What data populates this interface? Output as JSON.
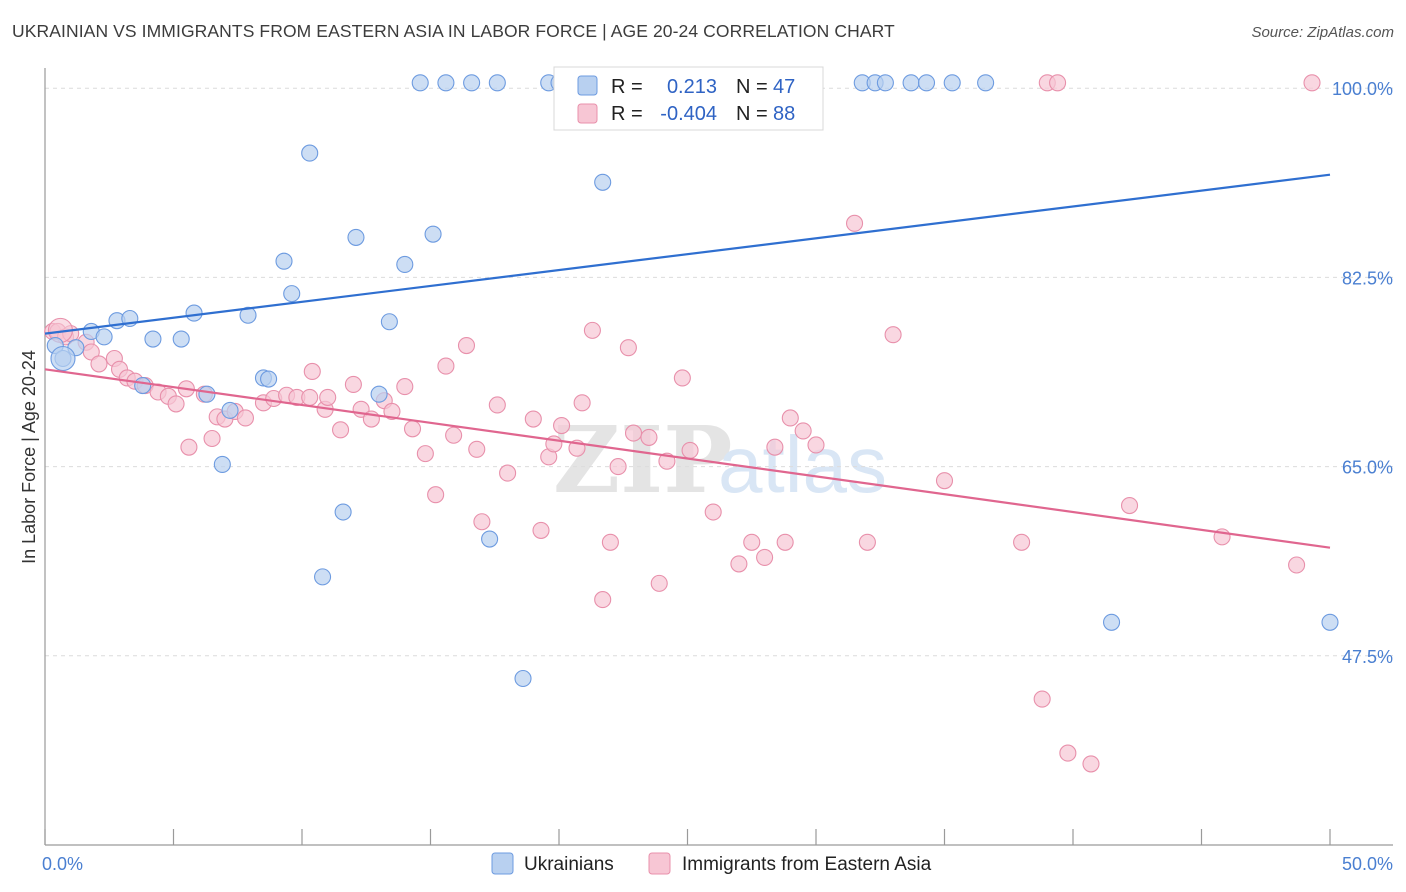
{
  "title": "UKRAINIAN VS IMMIGRANTS FROM EASTERN ASIA IN LABOR FORCE | AGE 20-24 CORRELATION CHART",
  "source": "Source: ZipAtlas.com",
  "watermark": {
    "zip": "ZIP",
    "atlas": "atlas"
  },
  "colors": {
    "blue_fill": "#b8d0f0",
    "blue_stroke": "#6d9be0",
    "blue_line": "#2f6fd0",
    "pink_fill": "#f7c6d4",
    "pink_stroke": "#e890ab",
    "pink_line": "#e0668f",
    "grid": "#dcdcdc",
    "tick_text": "#4a7fd1"
  },
  "legend": {
    "r_label": "R =",
    "n_label": "N =",
    "rows": [
      {
        "r": "0.213",
        "n": "47"
      },
      {
        "r": "-0.404",
        "n": "88"
      }
    ]
  },
  "chart_data": {
    "type": "scatter",
    "title": "UKRAINIAN VS IMMIGRANTS FROM EASTERN ASIA IN LABOR FORCE | AGE 20-24 CORRELATION CHART",
    "xlabel": "",
    "ylabel": "In Labor Force | Age 20-24",
    "xlim": [
      0,
      50
    ],
    "ylim": [
      30,
      101.5
    ],
    "x_tick_labels": [
      "0.0%",
      "50.0%"
    ],
    "y_ticks": [
      47.5,
      65.0,
      82.5,
      100.0
    ],
    "y_tick_labels": [
      "47.5%",
      "65.0%",
      "82.5%",
      "100.0%"
    ],
    "grid": true,
    "series": [
      {
        "name": "Ukrainians",
        "r": 0.213,
        "n": 47,
        "trend": {
          "x": [
            0,
            50
          ],
          "y": [
            77.3,
            92.0
          ]
        },
        "points": [
          [
            0.4,
            76.2
          ],
          [
            0.7,
            75.0
          ],
          [
            1.2,
            76.0
          ],
          [
            1.8,
            77.5
          ],
          [
            2.3,
            77.0
          ],
          [
            2.8,
            78.5
          ],
          [
            3.3,
            78.7
          ],
          [
            3.8,
            72.5
          ],
          [
            4.2,
            76.8
          ],
          [
            5.3,
            76.8
          ],
          [
            5.8,
            79.2
          ],
          [
            6.3,
            71.7
          ],
          [
            6.9,
            65.2
          ],
          [
            7.2,
            70.2
          ],
          [
            7.9,
            79.0
          ],
          [
            8.5,
            73.2
          ],
          [
            8.7,
            73.1
          ],
          [
            9.3,
            84.0
          ],
          [
            9.6,
            81.0
          ],
          [
            10.3,
            94.0
          ],
          [
            10.8,
            54.8
          ],
          [
            11.6,
            60.8
          ],
          [
            12.1,
            86.2
          ],
          [
            13.0,
            71.7
          ],
          [
            13.4,
            78.4
          ],
          [
            14.0,
            83.7
          ],
          [
            14.6,
            100.5
          ],
          [
            15.1,
            86.5
          ],
          [
            15.6,
            100.5
          ],
          [
            16.6,
            100.5
          ],
          [
            17.3,
            58.3
          ],
          [
            17.6,
            100.5
          ],
          [
            18.6,
            45.4
          ],
          [
            19.6,
            100.5
          ],
          [
            20.0,
            100.5
          ],
          [
            21.7,
            91.3
          ],
          [
            23.3,
            100.5
          ],
          [
            25.3,
            100.5
          ],
          [
            31.8,
            100.5
          ],
          [
            32.3,
            100.5
          ],
          [
            32.7,
            100.5
          ],
          [
            33.7,
            100.5
          ],
          [
            34.3,
            100.5
          ],
          [
            35.3,
            100.5
          ],
          [
            36.6,
            100.5
          ],
          [
            41.5,
            50.6
          ],
          [
            50.0,
            50.6
          ]
        ]
      },
      {
        "name": "Immigrants from Eastern Asia",
        "r": -0.404,
        "n": 88,
        "trend": {
          "x": [
            0,
            50
          ],
          "y": [
            74.0,
            57.5
          ]
        },
        "points": [
          [
            0.3,
            77.5
          ],
          [
            0.5,
            77.5
          ],
          [
            0.8,
            77.0
          ],
          [
            1.0,
            77.3
          ],
          [
            1.6,
            76.5
          ],
          [
            1.8,
            75.6
          ],
          [
            2.1,
            74.5
          ],
          [
            2.7,
            75.0
          ],
          [
            2.9,
            74.0
          ],
          [
            3.2,
            73.2
          ],
          [
            3.5,
            72.9
          ],
          [
            3.9,
            72.5
          ],
          [
            4.4,
            71.9
          ],
          [
            4.8,
            71.5
          ],
          [
            5.1,
            70.8
          ],
          [
            5.5,
            72.2
          ],
          [
            5.6,
            66.8
          ],
          [
            6.2,
            71.7
          ],
          [
            6.5,
            67.6
          ],
          [
            6.7,
            69.6
          ],
          [
            7.0,
            69.4
          ],
          [
            7.4,
            70.1
          ],
          [
            7.8,
            69.5
          ],
          [
            8.5,
            70.9
          ],
          [
            8.9,
            71.3
          ],
          [
            9.4,
            71.6
          ],
          [
            9.8,
            71.4
          ],
          [
            10.3,
            71.4
          ],
          [
            10.4,
            73.8
          ],
          [
            10.9,
            70.3
          ],
          [
            11.0,
            71.4
          ],
          [
            11.5,
            68.4
          ],
          [
            12.0,
            72.6
          ],
          [
            12.3,
            70.3
          ],
          [
            12.7,
            69.4
          ],
          [
            13.2,
            71.1
          ],
          [
            13.5,
            70.1
          ],
          [
            14.0,
            72.4
          ],
          [
            14.3,
            68.5
          ],
          [
            14.8,
            66.2
          ],
          [
            15.2,
            62.4
          ],
          [
            15.6,
            74.3
          ],
          [
            15.9,
            67.9
          ],
          [
            16.4,
            76.2
          ],
          [
            16.8,
            66.6
          ],
          [
            17.0,
            59.9
          ],
          [
            17.6,
            70.7
          ],
          [
            18.0,
            64.4
          ],
          [
            19.0,
            69.4
          ],
          [
            19.3,
            59.1
          ],
          [
            19.6,
            65.9
          ],
          [
            19.8,
            67.1
          ],
          [
            20.1,
            68.8
          ],
          [
            20.7,
            66.7
          ],
          [
            20.9,
            70.9
          ],
          [
            21.3,
            77.6
          ],
          [
            21.7,
            52.7
          ],
          [
            22.0,
            58.0
          ],
          [
            22.3,
            65.0
          ],
          [
            22.7,
            76.0
          ],
          [
            22.9,
            68.1
          ],
          [
            23.5,
            67.7
          ],
          [
            23.9,
            54.2
          ],
          [
            24.2,
            65.5
          ],
          [
            24.8,
            73.2
          ],
          [
            25.1,
            66.5
          ],
          [
            26.0,
            60.8
          ],
          [
            27.0,
            56.0
          ],
          [
            27.5,
            58.0
          ],
          [
            28.0,
            56.6
          ],
          [
            28.4,
            66.8
          ],
          [
            28.8,
            58.0
          ],
          [
            29.0,
            69.5
          ],
          [
            29.5,
            68.3
          ],
          [
            30.0,
            67.0
          ],
          [
            31.5,
            87.5
          ],
          [
            32.0,
            58.0
          ],
          [
            33.0,
            77.2
          ],
          [
            35.0,
            63.7
          ],
          [
            38.0,
            58.0
          ],
          [
            38.8,
            43.5
          ],
          [
            39.0,
            100.5
          ],
          [
            39.4,
            100.5
          ],
          [
            39.8,
            38.5
          ],
          [
            40.7,
            37.5
          ],
          [
            42.2,
            61.4
          ],
          [
            45.8,
            58.5
          ],
          [
            48.7,
            55.9
          ],
          [
            49.3,
            100.5
          ]
        ]
      }
    ]
  }
}
